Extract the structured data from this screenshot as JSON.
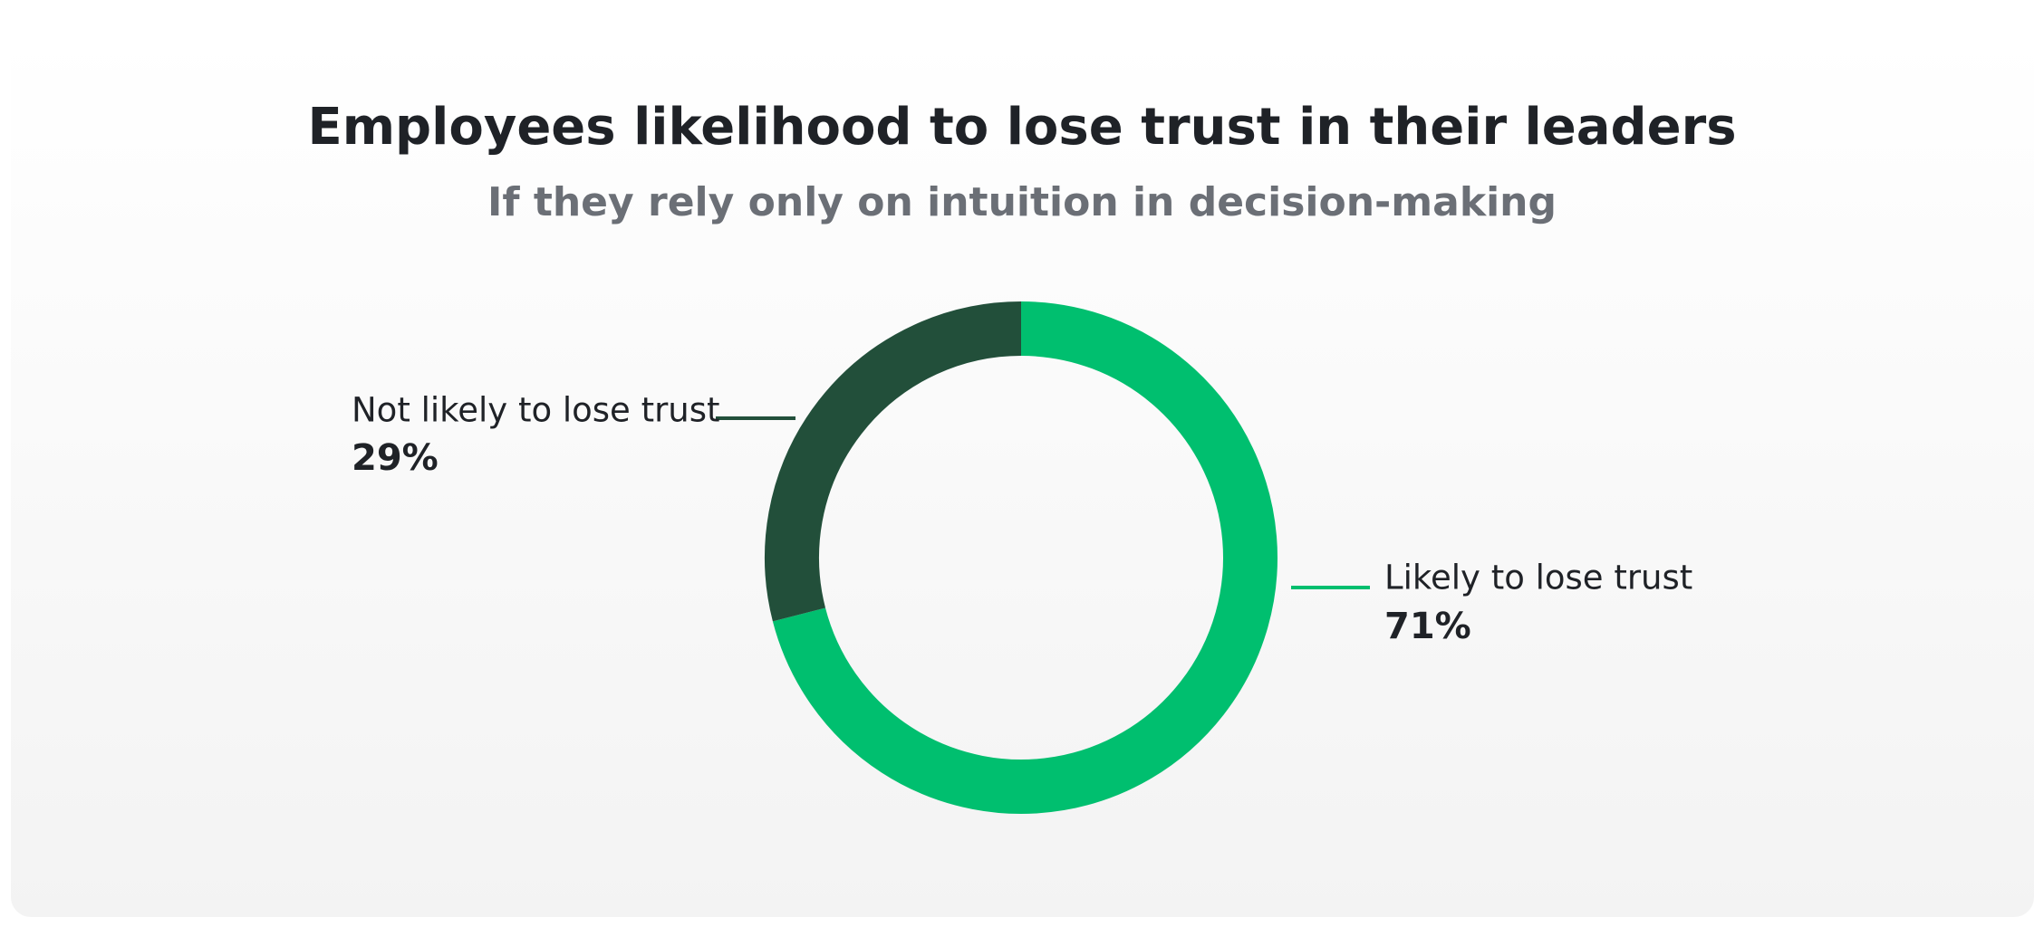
{
  "chart_data": {
    "type": "donut",
    "title": "Employees likelihood to lose trust in their leaders",
    "subtitle": "If they rely only on intuition in decision-making",
    "categories": [
      "Likely to lose trust",
      "Not likely to lose trust"
    ],
    "values": [
      71,
      29
    ],
    "value_labels": [
      "71%",
      "29%"
    ],
    "colors": [
      "#00bf6f",
      "#224f3a"
    ]
  }
}
